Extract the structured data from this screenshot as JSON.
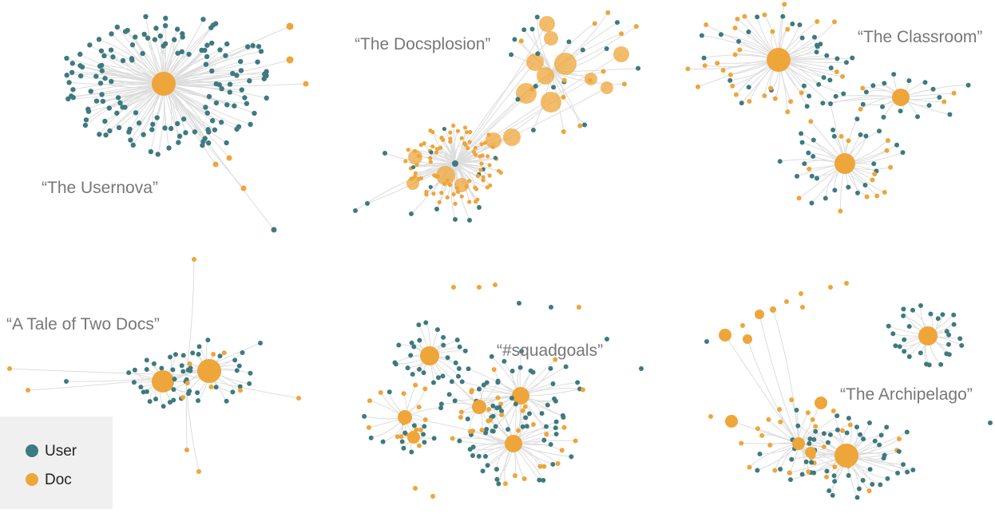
{
  "clusters": [
    {
      "label": "“The Usernova”"
    },
    {
      "label": "“The Docsplosion”"
    },
    {
      "label": "“The Classroom”"
    },
    {
      "label": "“A Tale of Two Docs”"
    },
    {
      "label": "“#squadgoals”"
    },
    {
      "label": "“The Archipelago”"
    }
  ],
  "legend": {
    "items": [
      {
        "label": "User"
      },
      {
        "label": "Doc"
      }
    ]
  }
}
